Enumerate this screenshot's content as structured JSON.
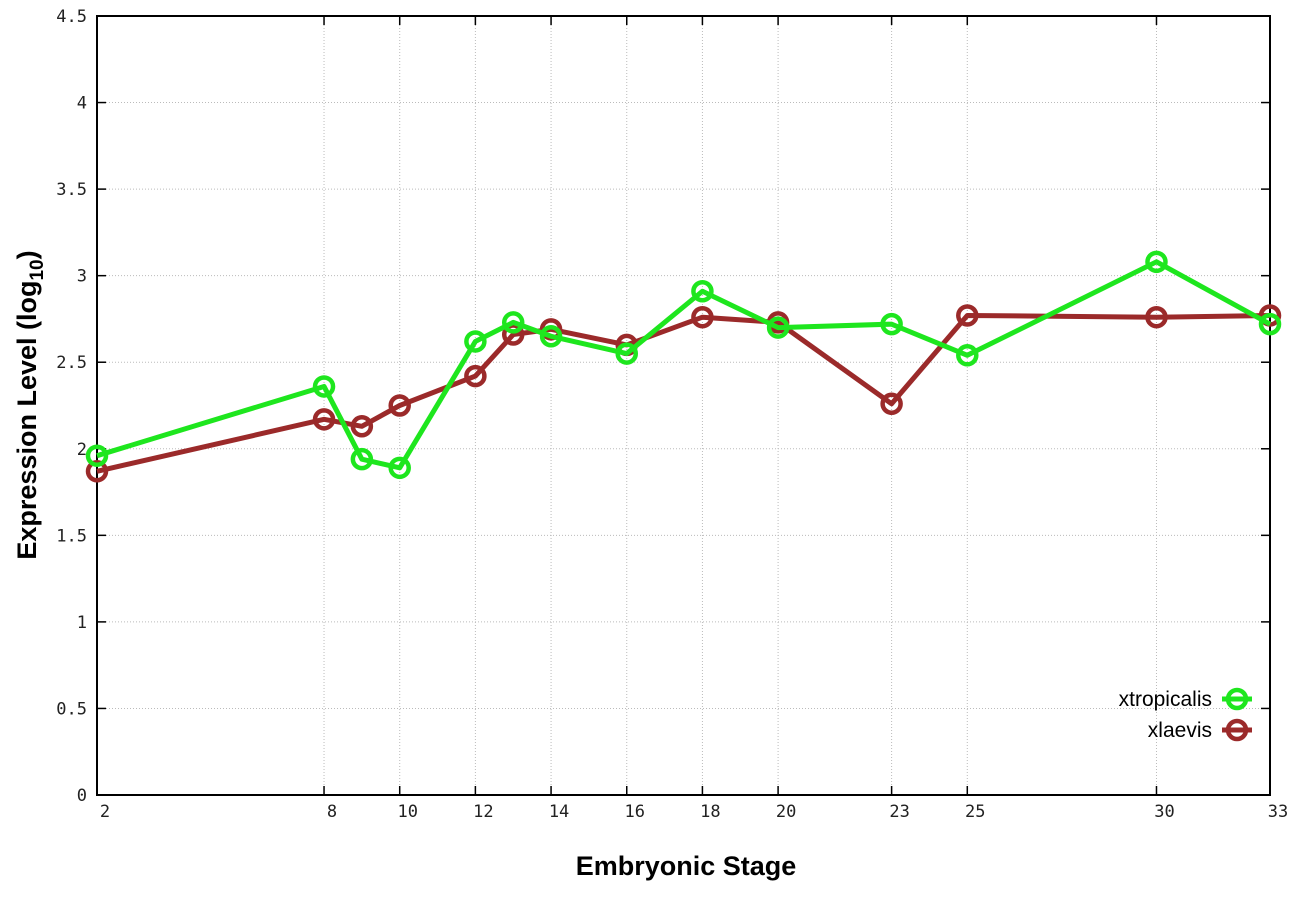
{
  "chart_data": {
    "type": "line",
    "title": "",
    "xlabel": "Embryonic Stage",
    "ylabel": "Expression Level (log",
    "ylabel_subscript": "10",
    "ylabel_suffix": ")",
    "xlim": [
      2,
      33
    ],
    "ylim": [
      0,
      4.5
    ],
    "x_ticks": [
      2,
      8,
      10,
      12,
      14,
      16,
      18,
      20,
      23,
      25,
      30,
      33
    ],
    "y_ticks": [
      "0",
      "0.5",
      "1",
      "1.5",
      "2",
      "2.5",
      "3",
      "3.5",
      "4",
      "4.5"
    ],
    "grid": true,
    "legend_position": "bottom-right",
    "x": [
      2,
      8,
      9,
      10,
      12,
      13,
      14,
      16,
      18,
      20,
      23,
      25,
      30,
      33
    ],
    "series": [
      {
        "name": "xtropicalis",
        "color": "#1ee61e",
        "values": [
          1.96,
          2.36,
          1.94,
          1.89,
          2.62,
          2.73,
          2.65,
          2.55,
          2.91,
          2.7,
          2.72,
          2.54,
          3.08,
          2.72
        ]
      },
      {
        "name": "xlaevis",
        "color": "#9b2a2a",
        "values": [
          1.87,
          2.17,
          2.13,
          2.25,
          2.42,
          2.66,
          2.69,
          2.6,
          2.76,
          2.73,
          2.26,
          2.77,
          2.76,
          2.77
        ]
      }
    ]
  }
}
